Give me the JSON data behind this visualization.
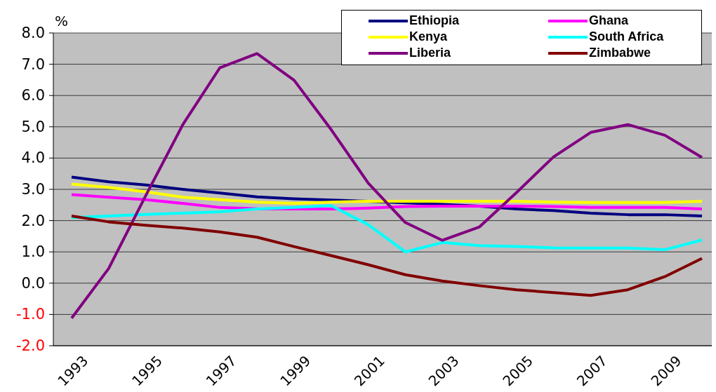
{
  "chart_data": {
    "type": "line",
    "ylabel": "%",
    "categories": [
      "1993",
      null,
      "1995",
      null,
      "1997",
      null,
      "1999",
      null,
      "2001",
      null,
      "2003",
      null,
      "2005",
      null,
      "2007",
      null,
      "2009",
      null
    ],
    "series": [
      {
        "name": "Ethiopia",
        "color": "#000080",
        "values": [
          3.39,
          3.24,
          3.14,
          3.0,
          2.88,
          2.76,
          2.7,
          2.66,
          2.62,
          2.57,
          2.52,
          2.46,
          2.37,
          2.32,
          2.24,
          2.19,
          2.19,
          2.15
        ]
      },
      {
        "name": "Ghana",
        "color": "#ff00ff",
        "values": [
          2.83,
          2.75,
          2.67,
          2.55,
          2.42,
          2.38,
          2.37,
          2.37,
          2.4,
          2.45,
          2.46,
          2.46,
          2.46,
          2.45,
          2.42,
          2.42,
          2.42,
          2.37
        ]
      },
      {
        "name": "Kenya",
        "color": "#ffff00",
        "values": [
          3.17,
          3.06,
          2.92,
          2.75,
          2.67,
          2.59,
          2.55,
          2.59,
          2.62,
          2.62,
          2.62,
          2.62,
          2.62,
          2.59,
          2.58,
          2.58,
          2.58,
          2.62
        ]
      },
      {
        "name": "South Africa",
        "color": "#00ffff",
        "values": [
          2.1,
          2.15,
          2.2,
          2.24,
          2.28,
          2.37,
          2.42,
          2.48,
          1.87,
          1.0,
          1.3,
          1.2,
          1.17,
          1.13,
          1.12,
          1.12,
          1.07,
          1.38
        ]
      },
      {
        "name": "Liberia",
        "color": "#800080",
        "values": [
          -1.12,
          0.47,
          2.8,
          5.07,
          6.89,
          7.34,
          6.49,
          4.91,
          3.2,
          1.94,
          1.37,
          1.8,
          2.9,
          4.04,
          4.82,
          5.07,
          4.73,
          4.02
        ]
      },
      {
        "name": "Zimbabwe",
        "color": "#800000",
        "values": [
          2.15,
          1.96,
          1.85,
          1.76,
          1.64,
          1.47,
          1.17,
          0.88,
          0.59,
          0.27,
          0.07,
          -0.08,
          -0.21,
          -0.3,
          -0.39,
          -0.21,
          0.21,
          0.79
        ]
      }
    ],
    "ylim": [
      -2,
      8
    ],
    "yticks": [
      {
        "value": -2,
        "label": "-2.0"
      },
      {
        "value": -1,
        "label": "-1.0"
      },
      {
        "value": 0,
        "label": "0.0"
      },
      {
        "value": 1,
        "label": "1.0"
      },
      {
        "value": 2,
        "label": "2.0"
      },
      {
        "value": 3,
        "label": "3.0"
      },
      {
        "value": 4,
        "label": "4.0"
      },
      {
        "value": 5,
        "label": "5.0"
      },
      {
        "value": 6,
        "label": "6.0"
      },
      {
        "value": 7,
        "label": "7.0"
      },
      {
        "value": 8,
        "label": "8.0"
      }
    ],
    "grid": "y",
    "legend": "top right",
    "marker": "none",
    "line_style": "solid"
  }
}
